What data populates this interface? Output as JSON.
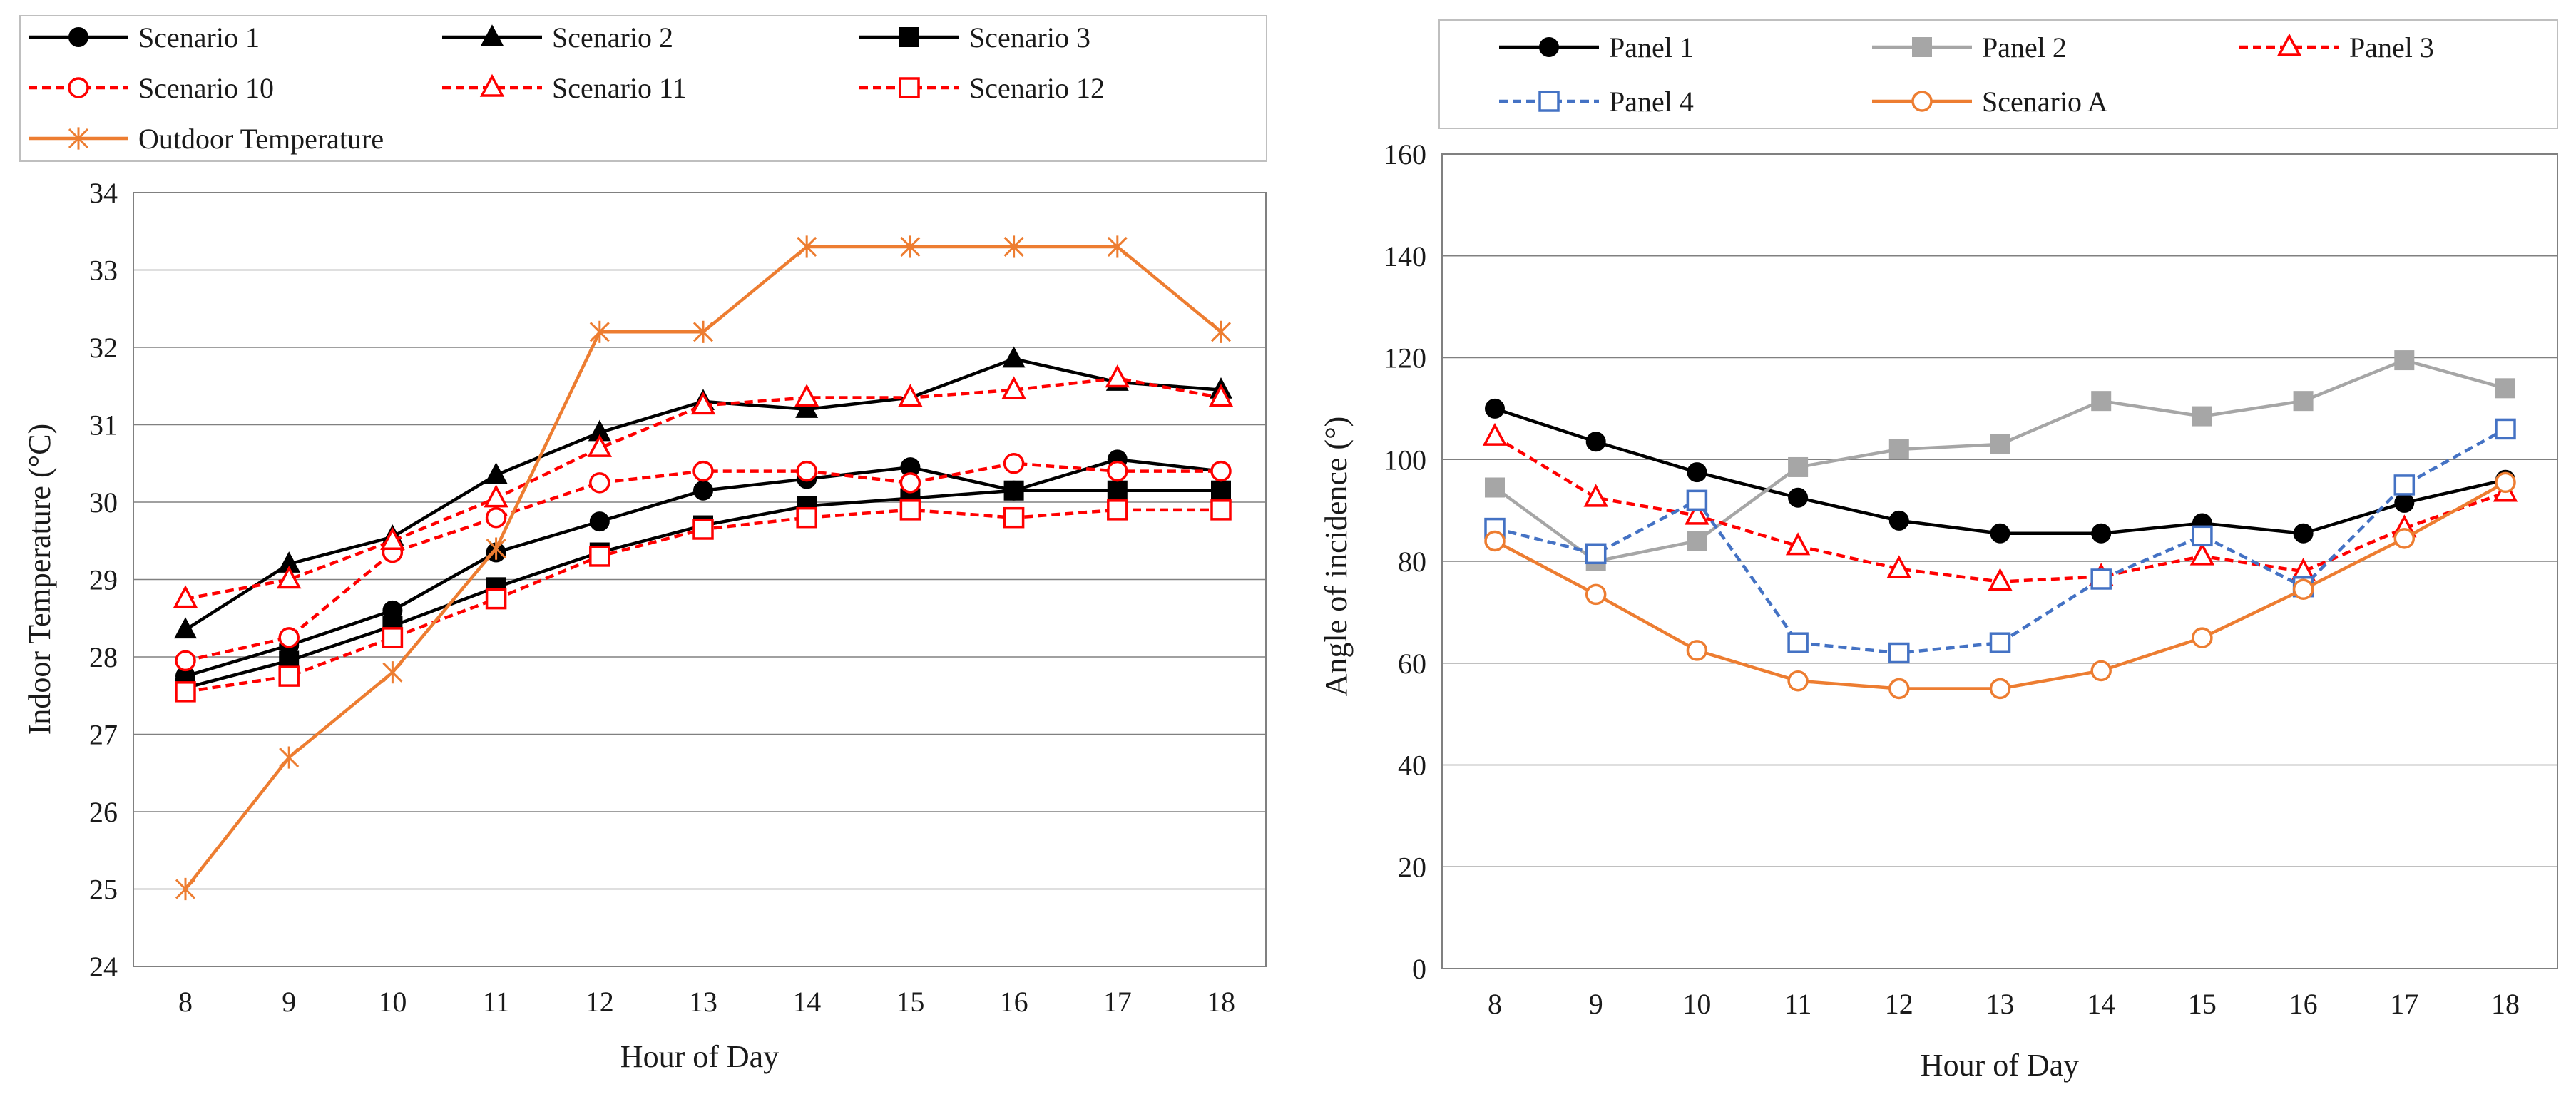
{
  "chart_data": [
    {
      "type": "line",
      "xlabel": "Hour of Day",
      "ylabel": "Indoor Temperature (°C)",
      "categories": [
        "8",
        "9",
        "10",
        "11",
        "12",
        "13",
        "14",
        "15",
        "16",
        "17",
        "18"
      ],
      "ylim": [
        24,
        34
      ],
      "yticks": [
        "24",
        "25",
        "26",
        "27",
        "28",
        "29",
        "30",
        "31",
        "32",
        "33",
        "34"
      ],
      "legend_position": "top",
      "grid": true,
      "series": [
        {
          "name": "Scenario 1",
          "color": "#000000",
          "dash": "solid",
          "marker": "circle-filled",
          "values": [
            27.75,
            28.15,
            28.6,
            29.35,
            29.75,
            30.15,
            30.3,
            30.45,
            30.15,
            30.55,
            30.4
          ]
        },
        {
          "name": "Scenario 2",
          "color": "#000000",
          "dash": "solid",
          "marker": "triangle-filled",
          "values": [
            28.35,
            29.2,
            29.55,
            30.35,
            30.9,
            31.3,
            31.2,
            31.35,
            31.85,
            31.55,
            31.45
          ]
        },
        {
          "name": "Scenario 3",
          "color": "#000000",
          "dash": "solid",
          "marker": "square-filled",
          "values": [
            27.6,
            27.95,
            28.4,
            28.9,
            29.35,
            29.7,
            29.95,
            30.05,
            30.15,
            30.15,
            30.15
          ]
        },
        {
          "name": "Scenario 10",
          "color": "#ff0000",
          "dash": "dashed",
          "marker": "circle-open",
          "values": [
            27.95,
            28.25,
            29.35,
            29.8,
            30.25,
            30.4,
            30.4,
            30.25,
            30.5,
            30.4,
            30.4
          ]
        },
        {
          "name": "Scenario 11",
          "color": "#ff0000",
          "dash": "dashed",
          "marker": "triangle-open",
          "values": [
            28.75,
            29.0,
            29.5,
            30.05,
            30.7,
            31.25,
            31.35,
            31.35,
            31.45,
            31.6,
            31.35
          ]
        },
        {
          "name": "Scenario 12",
          "color": "#ff0000",
          "dash": "dashed",
          "marker": "square-open",
          "values": [
            27.55,
            27.75,
            28.25,
            28.75,
            29.3,
            29.65,
            29.8,
            29.9,
            29.8,
            29.9,
            29.9
          ]
        },
        {
          "name": "Outdoor Temperature",
          "color": "#ed7d31",
          "dash": "solid",
          "marker": "star",
          "values": [
            25.0,
            26.7,
            27.8,
            29.4,
            32.2,
            32.2,
            33.3,
            33.3,
            33.3,
            33.3,
            32.2
          ]
        }
      ]
    },
    {
      "type": "line",
      "xlabel": "Hour of Day",
      "ylabel": "Angle of incidence (°)",
      "categories": [
        "8",
        "9",
        "10",
        "11",
        "12",
        "13",
        "14",
        "15",
        "16",
        "17",
        "18"
      ],
      "ylim": [
        0,
        160
      ],
      "yticks": [
        "0",
        "20",
        "40",
        "60",
        "80",
        "100",
        "120",
        "140",
        "160"
      ],
      "legend_position": "top",
      "grid": true,
      "series": [
        {
          "name": "Panel 1",
          "color": "#000000",
          "dash": "solid",
          "marker": "circle-filled",
          "values": [
            110,
            103.5,
            97.5,
            92.5,
            88,
            85.5,
            85.5,
            87.5,
            85.5,
            91.5,
            96
          ]
        },
        {
          "name": "Panel 2",
          "color": "#a6a6a6",
          "dash": "solid",
          "marker": "square-filled",
          "values": [
            94.5,
            80,
            84,
            98.5,
            102,
            103,
            111.5,
            108.5,
            111.5,
            119.5,
            114
          ]
        },
        {
          "name": "Panel 3",
          "color": "#ff0000",
          "dash": "dashed",
          "marker": "triangle-open",
          "values": [
            104.5,
            92.5,
            89,
            83,
            78.5,
            76,
            77,
            81,
            78,
            86.5,
            93.5
          ]
        },
        {
          "name": "Panel 4",
          "color": "#4472c4",
          "dash": "dashed",
          "marker": "square-open",
          "values": [
            86.5,
            81.5,
            92,
            64,
            62,
            64,
            76.5,
            85,
            75,
            95,
            106
          ]
        },
        {
          "name": "Scenario A",
          "color": "#ed7d31",
          "dash": "solid",
          "marker": "circle-open",
          "values": [
            84,
            73.5,
            62.5,
            56.5,
            55,
            55,
            58.5,
            65,
            74.5,
            84.5,
            95.5
          ]
        }
      ]
    }
  ]
}
